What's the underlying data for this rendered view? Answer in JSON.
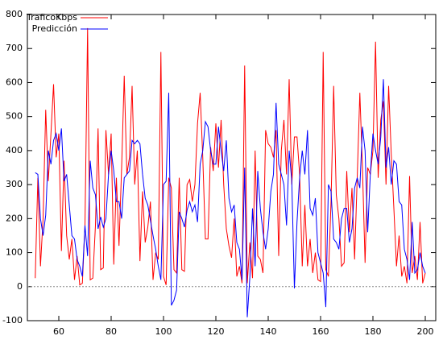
{
  "chart_data": {
    "type": "line",
    "x": [
      51,
      52,
      53,
      54,
      55,
      56,
      57,
      58,
      59,
      60,
      61,
      62,
      63,
      64,
      65,
      66,
      67,
      68,
      69,
      70,
      71,
      72,
      73,
      74,
      75,
      76,
      77,
      78,
      79,
      80,
      81,
      82,
      83,
      84,
      85,
      86,
      87,
      88,
      89,
      90,
      91,
      92,
      93,
      94,
      95,
      96,
      97,
      98,
      99,
      100,
      101,
      102,
      103,
      104,
      105,
      106,
      107,
      108,
      109,
      110,
      111,
      112,
      113,
      114,
      115,
      116,
      117,
      118,
      119,
      120,
      121,
      122,
      123,
      124,
      125,
      126,
      127,
      128,
      129,
      130,
      131,
      132,
      133,
      134,
      135,
      136,
      137,
      138,
      139,
      140,
      141,
      142,
      143,
      144,
      145,
      146,
      147,
      148,
      149,
      150,
      151,
      152,
      153,
      154,
      155,
      156,
      157,
      158,
      159,
      160,
      161,
      162,
      163,
      164,
      165,
      166,
      167,
      168,
      169,
      170,
      171,
      172,
      173,
      174,
      175,
      176,
      177,
      178,
      179,
      180,
      181,
      182,
      183,
      184,
      185,
      186,
      187,
      188,
      189,
      190,
      191,
      192,
      193,
      194,
      195,
      196,
      197,
      198,
      199,
      200
    ],
    "series": [
      {
        "name": "TraficoKbps",
        "color": "#ff0000",
        "values": [
          25,
          320,
          60,
          200,
          520,
          310,
          450,
          595,
          380,
          450,
          105,
          370,
          150,
          80,
          140,
          20,
          90,
          5,
          10,
          180,
          760,
          20,
          25,
          180,
          465,
          50,
          55,
          460,
          330,
          450,
          65,
          320,
          120,
          350,
          620,
          330,
          380,
          590,
          300,
          400,
          75,
          280,
          130,
          175,
          250,
          20,
          100,
          80,
          690,
          30,
          5,
          320,
          290,
          50,
          40,
          320,
          50,
          45,
          300,
          315,
          250,
          300,
          480,
          570,
          380,
          140,
          140,
          410,
          340,
          480,
          350,
          490,
          300,
          170,
          120,
          85,
          200,
          30,
          60,
          10,
          650,
          10,
          130,
          25,
          400,
          90,
          80,
          40,
          460,
          420,
          410,
          380,
          460,
          90,
          400,
          490,
          330,
          610,
          300,
          440,
          440,
          330,
          60,
          240,
          60,
          140,
          40,
          100,
          20,
          15,
          690,
          50,
          30,
          250,
          590,
          270,
          200,
          60,
          70,
          340,
          160,
          290,
          80,
          320,
          570,
          350,
          70,
          350,
          330,
          400,
          720,
          320,
          490,
          545,
          300,
          590,
          390,
          230,
          60,
          150,
          30,
          60,
          10,
          325,
          40,
          90,
          20,
          190,
          10,
          40
        ]
      },
      {
        "name": "Predicción",
        "color": "#0000ff",
        "values": [
          335,
          330,
          200,
          150,
          210,
          400,
          360,
          430,
          450,
          400,
          465,
          310,
          330,
          240,
          150,
          140,
          80,
          60,
          30,
          180,
          90,
          370,
          290,
          270,
          170,
          205,
          175,
          200,
          330,
          400,
          340,
          250,
          250,
          200,
          320,
          330,
          340,
          430,
          420,
          430,
          420,
          330,
          260,
          240,
          195,
          150,
          110,
          60,
          20,
          300,
          310,
          570,
          -55,
          -40,
          -10,
          220,
          200,
          175,
          225,
          250,
          220,
          240,
          190,
          360,
          400,
          485,
          470,
          400,
          360,
          360,
          470,
          400,
          340,
          430,
          260,
          220,
          240,
          130,
          110,
          20,
          350,
          -90,
          30,
          230,
          60,
          340,
          230,
          160,
          110,
          170,
          280,
          330,
          540,
          360,
          330,
          300,
          180,
          400,
          310,
          -5,
          190,
          320,
          400,
          330,
          460,
          230,
          210,
          260,
          100,
          70,
          40,
          -60,
          300,
          280,
          140,
          130,
          110,
          200,
          230,
          230,
          130,
          170,
          290,
          320,
          290,
          470,
          400,
          160,
          330,
          450,
          400,
          360,
          440,
          610,
          350,
          410,
          300,
          370,
          360,
          250,
          240,
          110,
          80,
          20,
          190,
          40,
          50,
          100,
          60,
          40
        ]
      }
    ],
    "xlim": [
      48,
      204
    ],
    "xticks": [
      60,
      80,
      100,
      120,
      140,
      160,
      180,
      200
    ],
    "ylim": [
      -100,
      800
    ],
    "yticks": [
      -100,
      0,
      100,
      200,
      300,
      400,
      500,
      600,
      700,
      800
    ],
    "legend": "top-left"
  }
}
